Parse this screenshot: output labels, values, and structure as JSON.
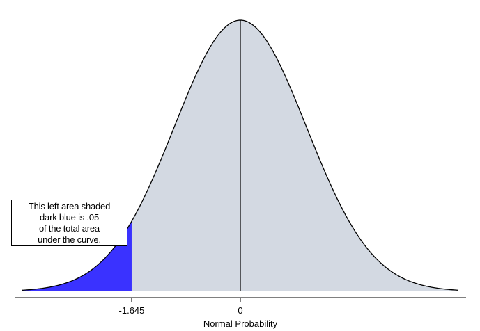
{
  "chart_data": {
    "type": "area",
    "title": "",
    "xlabel": "Normal Probability",
    "ylabel": "",
    "distribution": "standard normal",
    "mean": 0,
    "sd": 1,
    "xlim": [
      -3.3,
      3.3
    ],
    "critical_value": -1.645,
    "tail_area": 0.05,
    "x_ticks": [
      {
        "value": -1.645,
        "label": "-1.645"
      },
      {
        "value": 0,
        "label": "0"
      }
    ],
    "annotation_lines": [
      "This left area shaded",
      "dark blue is .05",
      "of the total area",
      "under the curve."
    ],
    "colors": {
      "body_fill": "#d3d9e2",
      "tail_fill": "#3a32ff",
      "curve": "#000000"
    },
    "grid": false
  }
}
